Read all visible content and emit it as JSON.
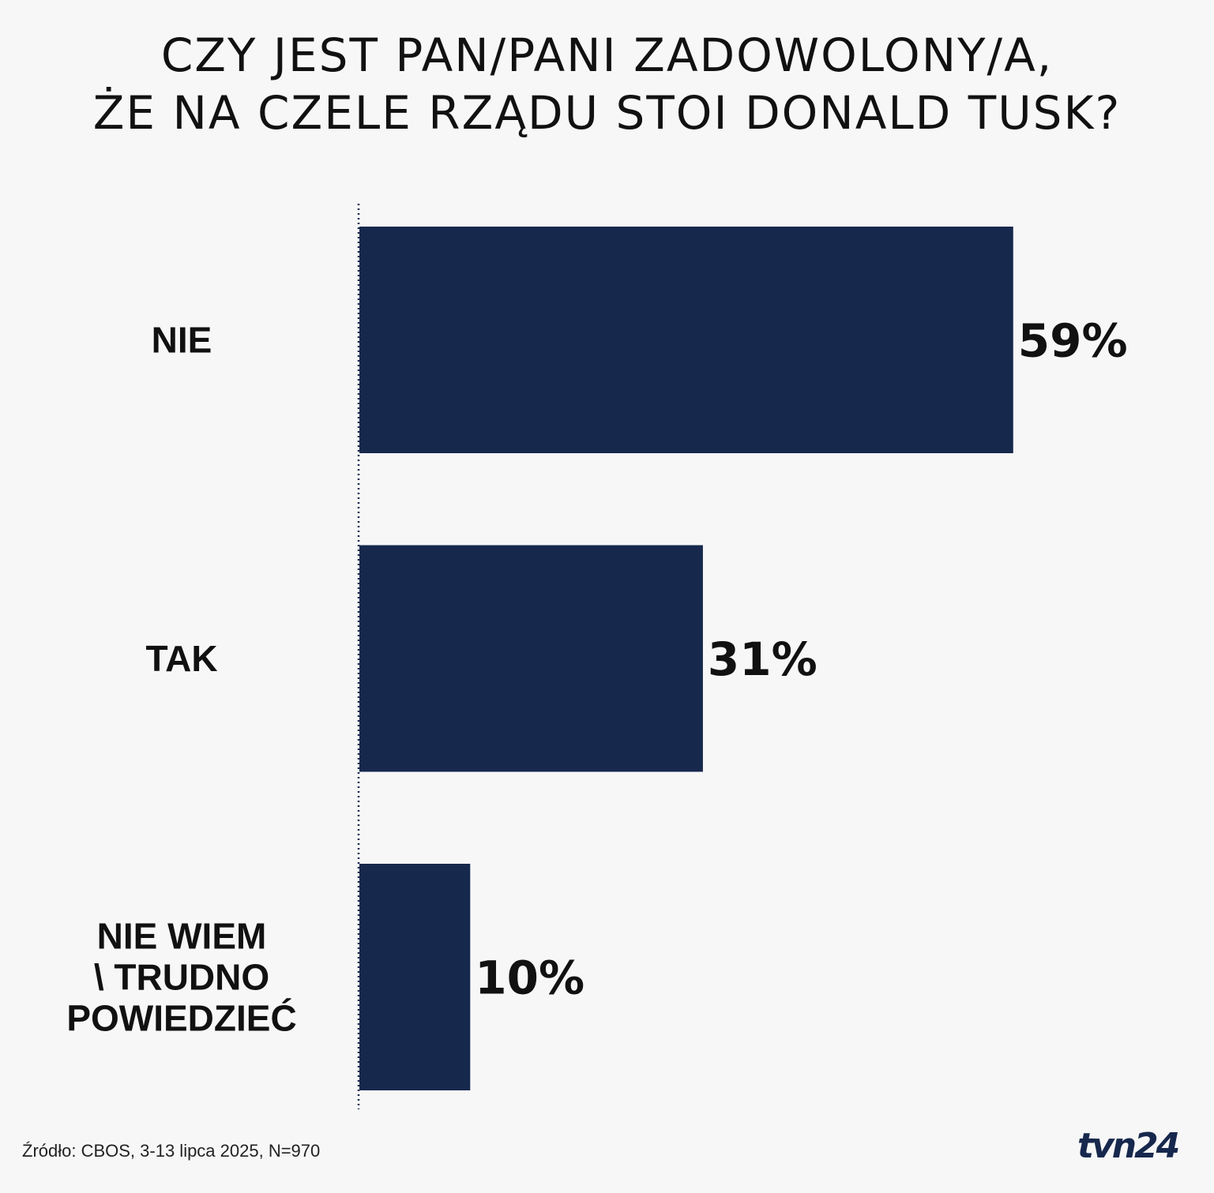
{
  "title_lines": [
    "CZY JEST PAN/PANI ZADOWOLONY/A,",
    "ŻE NA CZELE RZĄDU STOI DONALD TUSK?"
  ],
  "chart_data": {
    "type": "bar",
    "orientation": "horizontal",
    "title": "CZY JEST PAN/PANI ZADOWOLONY/A, ŻE NA CZELE RZĄDU STOI DONALD TUSK?",
    "categories": [
      [
        "NIE"
      ],
      [
        "TAK"
      ],
      [
        "NIE WIEM",
        "\\ TRUDNO",
        "POWIEDZIEĆ"
      ]
    ],
    "values": [
      59,
      31,
      10
    ],
    "value_labels": [
      "59%",
      "31%",
      "10%"
    ],
    "unit": "%",
    "xlim": [
      0,
      100
    ],
    "grid": false,
    "legend": "none",
    "bar_color": "#17284d"
  },
  "source": "Źródło: CBOS, 3-13 lipca 2025, N=970",
  "logo": {
    "text": "tvn24",
    "color": "#17284d"
  }
}
